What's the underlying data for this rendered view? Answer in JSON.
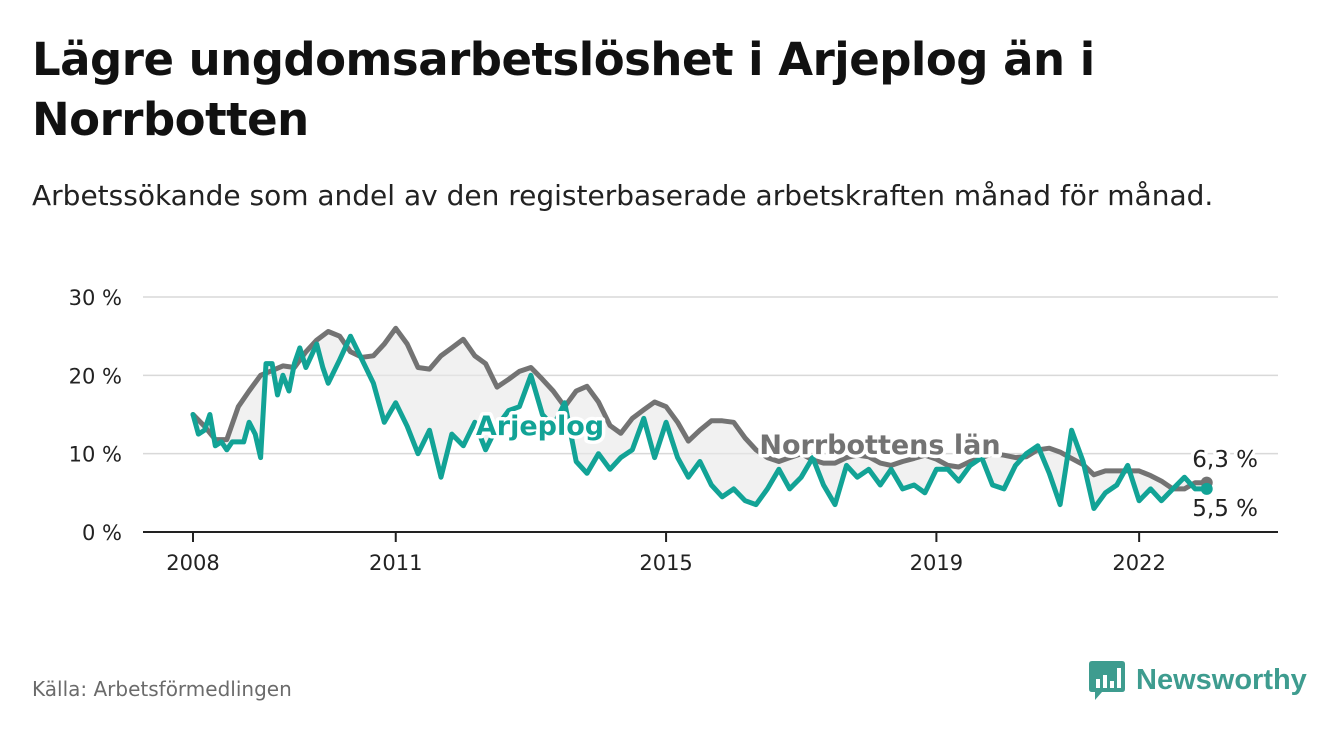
{
  "title": "Lägre ungdomsarbetslöshet i Arjeplog än i Norrbotten",
  "subtitle": "Arbetssökande som andel av den registerbaserade arbetskraften månad för månad.",
  "source": "Källa: Arbetsförmedlingen",
  "brand": {
    "name": "Newsworthy",
    "icon": "newsworthy-logo-icon"
  },
  "colors": {
    "arjeplog": "#12a396",
    "norrbotten": "#737373",
    "fill": "#e8e8e8",
    "grid": "#d9d9d9",
    "axis": "#222222"
  },
  "chart_data": {
    "type": "line",
    "title": "Lägre ungdomsarbetslöshet i Arjeplog än i Norrbotten",
    "xlabel": "",
    "ylabel": "",
    "xlim": [
      2008.0,
      2023.3
    ],
    "ylim": [
      0,
      30
    ],
    "grid": true,
    "x_ticks": [
      2008,
      2011,
      2015,
      2019,
      2022
    ],
    "x_tick_labels": [
      "2008",
      "2011",
      "2015",
      "2019",
      "2022"
    ],
    "y_ticks": [
      0,
      10,
      20,
      30
    ],
    "y_tick_labels": [
      "0 %",
      "10 %",
      "20 %",
      "30 %"
    ],
    "series": [
      {
        "name": "Norrbottens län",
        "label": "Norrbottens län",
        "end_label": "6,3 %",
        "x": [
          2008.0,
          2008.17,
          2008.33,
          2008.5,
          2008.67,
          2008.83,
          2009.0,
          2009.17,
          2009.33,
          2009.5,
          2009.67,
          2009.83,
          2010.0,
          2010.17,
          2010.33,
          2010.5,
          2010.67,
          2010.83,
          2011.0,
          2011.17,
          2011.33,
          2011.5,
          2011.67,
          2011.83,
          2012.0,
          2012.17,
          2012.33,
          2012.5,
          2012.67,
          2012.83,
          2013.0,
          2013.17,
          2013.33,
          2013.5,
          2013.67,
          2013.83,
          2014.0,
          2014.17,
          2014.33,
          2014.5,
          2014.67,
          2014.83,
          2015.0,
          2015.17,
          2015.33,
          2015.5,
          2015.67,
          2015.83,
          2016.0,
          2016.17,
          2016.33,
          2016.5,
          2016.67,
          2016.83,
          2017.0,
          2017.17,
          2017.33,
          2017.5,
          2017.67,
          2017.83,
          2018.0,
          2018.17,
          2018.33,
          2018.5,
          2018.67,
          2018.83,
          2019.0,
          2019.17,
          2019.33,
          2019.5,
          2019.67,
          2019.83,
          2020.0,
          2020.17,
          2020.33,
          2020.5,
          2020.67,
          2020.83,
          2021.0,
          2021.17,
          2021.33,
          2021.5,
          2021.67,
          2021.83,
          2022.0,
          2022.17,
          2022.33,
          2022.5,
          2022.67,
          2022.83,
          2023.0
        ],
        "values": [
          15.0,
          13.5,
          11.8,
          11.8,
          16.0,
          18.0,
          20.0,
          20.6,
          21.2,
          21.0,
          23.0,
          24.5,
          25.6,
          25.0,
          23.0,
          22.3,
          22.5,
          24.0,
          26.0,
          24.0,
          21.0,
          20.8,
          22.5,
          23.5,
          24.6,
          22.5,
          21.5,
          18.5,
          19.5,
          20.5,
          21.0,
          19.5,
          18.0,
          16.0,
          18.0,
          18.6,
          16.6,
          13.6,
          12.6,
          14.5,
          15.6,
          16.6,
          16.0,
          14.0,
          11.6,
          13.0,
          14.2,
          14.2,
          14.0,
          12.0,
          10.5,
          9.5,
          9.0,
          9.5,
          10.0,
          9.2,
          8.8,
          8.8,
          9.5,
          9.8,
          9.6,
          8.8,
          8.5,
          9.0,
          9.4,
          9.8,
          9.3,
          8.5,
          8.3,
          9.0,
          9.5,
          10.0,
          9.8,
          9.5,
          9.6,
          10.5,
          10.7,
          10.2,
          9.4,
          8.6,
          7.3,
          7.8,
          7.8,
          7.8,
          7.8,
          7.2,
          6.5,
          5.5,
          5.5,
          6.3,
          6.3
        ]
      },
      {
        "name": "Arjeplog",
        "label": "Arjeplog",
        "end_label": "5,5 %",
        "x": [
          2008.0,
          2008.08,
          2008.17,
          2008.25,
          2008.33,
          2008.42,
          2008.5,
          2008.58,
          2008.67,
          2008.75,
          2008.83,
          2008.92,
          2009.0,
          2009.08,
          2009.17,
          2009.25,
          2009.33,
          2009.42,
          2009.5,
          2009.58,
          2009.67,
          2009.75,
          2009.83,
          2009.92,
          2010.0,
          2010.17,
          2010.33,
          2010.5,
          2010.67,
          2010.83,
          2011.0,
          2011.17,
          2011.33,
          2011.5,
          2011.67,
          2011.83,
          2012.0,
          2012.17,
          2012.33,
          2012.5,
          2012.67,
          2012.83,
          2013.0,
          2013.17,
          2013.33,
          2013.5,
          2013.67,
          2013.83,
          2014.0,
          2014.17,
          2014.33,
          2014.5,
          2014.67,
          2014.83,
          2015.0,
          2015.17,
          2015.33,
          2015.5,
          2015.67,
          2015.83,
          2016.0,
          2016.17,
          2016.33,
          2016.5,
          2016.67,
          2016.83,
          2017.0,
          2017.17,
          2017.33,
          2017.5,
          2017.67,
          2017.83,
          2018.0,
          2018.17,
          2018.33,
          2018.5,
          2018.67,
          2018.83,
          2019.0,
          2019.17,
          2019.33,
          2019.5,
          2019.67,
          2019.83,
          2020.0,
          2020.17,
          2020.33,
          2020.5,
          2020.67,
          2020.83,
          2021.0,
          2021.17,
          2021.33,
          2021.5,
          2021.67,
          2021.83,
          2022.0,
          2022.17,
          2022.33,
          2022.5,
          2022.67,
          2022.83,
          2023.0
        ],
        "values": [
          15.0,
          12.5,
          13.0,
          15.0,
          11.0,
          11.5,
          10.5,
          11.5,
          11.5,
          11.5,
          14.0,
          12.5,
          9.5,
          21.5,
          21.5,
          17.5,
          20.0,
          18.0,
          21.5,
          23.5,
          21.0,
          22.5,
          24.0,
          21.0,
          19.0,
          22.0,
          25.0,
          22.0,
          19.0,
          14.0,
          16.5,
          13.5,
          10.0,
          13.0,
          7.0,
          12.5,
          11.0,
          14.0,
          10.5,
          13.5,
          15.5,
          16.0,
          20.0,
          15.0,
          13.5,
          16.5,
          9.0,
          7.5,
          10.0,
          8.0,
          9.5,
          10.5,
          14.5,
          9.5,
          14.0,
          9.5,
          7.0,
          9.0,
          6.0,
          4.5,
          5.5,
          4.0,
          3.5,
          5.5,
          8.0,
          5.5,
          7.0,
          9.5,
          6.0,
          3.5,
          8.5,
          7.0,
          8.0,
          6.0,
          8.0,
          5.5,
          6.0,
          5.0,
          8.0,
          8.0,
          6.5,
          8.5,
          9.5,
          6.0,
          5.5,
          8.5,
          10.0,
          11.0,
          7.5,
          3.5,
          13.0,
          9.0,
          3.0,
          5.0,
          6.0,
          8.5,
          4.0,
          5.5,
          4.0,
          5.5,
          7.0,
          5.5,
          5.5
        ]
      }
    ]
  }
}
